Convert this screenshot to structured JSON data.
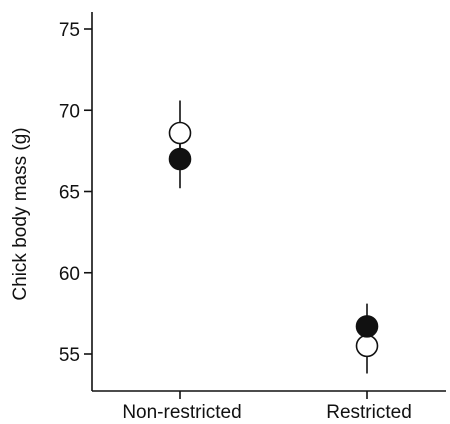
{
  "chart_data": {
    "type": "scatter",
    "ylabel": "Chick body mass (g)",
    "xlabel": "",
    "categories": [
      "Non-restricted",
      "Restricted"
    ],
    "ylim": [
      52.5,
      76.2
    ],
    "yticks": [
      55,
      60,
      65,
      70,
      75
    ],
    "grid": false,
    "series": [
      {
        "marker": "filled-circle",
        "color": "#111111",
        "values": [
          67.0,
          56.7
        ],
        "error_low": [
          65.2,
          55.3
        ],
        "error_high": [
          68.7,
          58.1
        ]
      },
      {
        "marker": "open-circle",
        "color": "#ffffff",
        "values": [
          68.6,
          55.5
        ],
        "error_low": [
          67.2,
          53.8
        ],
        "error_high": [
          70.6,
          56.9
        ]
      }
    ]
  }
}
